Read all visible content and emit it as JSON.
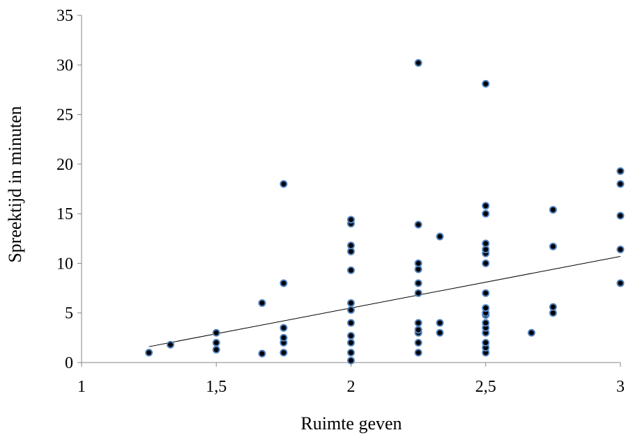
{
  "chart_data": {
    "type": "scatter",
    "title": "",
    "xlabel": "Ruimte geven",
    "ylabel": "Spreektijd in minuten",
    "xlim": [
      1,
      3
    ],
    "ylim": [
      0,
      35
    ],
    "x_ticks": [
      1,
      1.5,
      2,
      2.5,
      3
    ],
    "x_tick_labels": [
      "1",
      "1,5",
      "2",
      "2,5",
      "3"
    ],
    "y_ticks": [
      0,
      5,
      10,
      15,
      20,
      25,
      30,
      35
    ],
    "y_tick_labels": [
      "0",
      "5",
      "10",
      "15",
      "20",
      "25",
      "30",
      "35"
    ],
    "grid": false,
    "point_color": "#000000",
    "point_outline_color": "#4f81bd",
    "trendline": {
      "type": "linear",
      "x": [
        1.25,
        3
      ],
      "y": [
        1.6,
        10.7
      ],
      "color": "#000000"
    },
    "points": [
      {
        "x": 1.25,
        "y": 1.0
      },
      {
        "x": 1.33,
        "y": 1.8
      },
      {
        "x": 1.5,
        "y": 1.3
      },
      {
        "x": 1.5,
        "y": 2.0
      },
      {
        "x": 1.5,
        "y": 3.0
      },
      {
        "x": 1.67,
        "y": 0.9
      },
      {
        "x": 1.67,
        "y": 6.0
      },
      {
        "x": 1.75,
        "y": 1.0
      },
      {
        "x": 1.75,
        "y": 2.0
      },
      {
        "x": 1.75,
        "y": 2.5
      },
      {
        "x": 1.75,
        "y": 3.5
      },
      {
        "x": 1.75,
        "y": 8.0
      },
      {
        "x": 1.75,
        "y": 18.0
      },
      {
        "x": 2.0,
        "y": 0.2
      },
      {
        "x": 2.0,
        "y": 1.0
      },
      {
        "x": 2.0,
        "y": 2.0
      },
      {
        "x": 2.0,
        "y": 2.7
      },
      {
        "x": 2.0,
        "y": 4.0
      },
      {
        "x": 2.0,
        "y": 5.3
      },
      {
        "x": 2.0,
        "y": 6.0
      },
      {
        "x": 2.0,
        "y": 9.3
      },
      {
        "x": 2.0,
        "y": 11.2
      },
      {
        "x": 2.0,
        "y": 11.8
      },
      {
        "x": 2.0,
        "y": 14.0
      },
      {
        "x": 2.0,
        "y": 14.4
      },
      {
        "x": 2.25,
        "y": 1.0
      },
      {
        "x": 2.25,
        "y": 2.0
      },
      {
        "x": 2.25,
        "y": 3.0
      },
      {
        "x": 2.25,
        "y": 3.3
      },
      {
        "x": 2.25,
        "y": 4.0
      },
      {
        "x": 2.25,
        "y": 7.0
      },
      {
        "x": 2.25,
        "y": 8.0
      },
      {
        "x": 2.25,
        "y": 9.4
      },
      {
        "x": 2.25,
        "y": 10.0
      },
      {
        "x": 2.25,
        "y": 13.9
      },
      {
        "x": 2.25,
        "y": 30.2
      },
      {
        "x": 2.33,
        "y": 3.0
      },
      {
        "x": 2.33,
        "y": 4.0
      },
      {
        "x": 2.33,
        "y": 12.7
      },
      {
        "x": 2.5,
        "y": 1.0
      },
      {
        "x": 2.5,
        "y": 1.5
      },
      {
        "x": 2.5,
        "y": 2.0
      },
      {
        "x": 2.5,
        "y": 3.0
      },
      {
        "x": 2.5,
        "y": 3.5
      },
      {
        "x": 2.5,
        "y": 4.0
      },
      {
        "x": 2.5,
        "y": 4.8
      },
      {
        "x": 2.5,
        "y": 5.0
      },
      {
        "x": 2.5,
        "y": 5.5
      },
      {
        "x": 2.5,
        "y": 7.0
      },
      {
        "x": 2.5,
        "y": 10.0
      },
      {
        "x": 2.5,
        "y": 11.0
      },
      {
        "x": 2.5,
        "y": 11.4
      },
      {
        "x": 2.5,
        "y": 12.0
      },
      {
        "x": 2.5,
        "y": 15.0
      },
      {
        "x": 2.5,
        "y": 15.8
      },
      {
        "x": 2.5,
        "y": 28.1
      },
      {
        "x": 2.67,
        "y": 3.0
      },
      {
        "x": 2.75,
        "y": 5.0
      },
      {
        "x": 2.75,
        "y": 5.6
      },
      {
        "x": 2.75,
        "y": 11.7
      },
      {
        "x": 2.75,
        "y": 15.4
      },
      {
        "x": 3.0,
        "y": 8.0
      },
      {
        "x": 3.0,
        "y": 11.4
      },
      {
        "x": 3.0,
        "y": 14.8
      },
      {
        "x": 3.0,
        "y": 18.0
      },
      {
        "x": 3.0,
        "y": 19.3
      }
    ]
  }
}
